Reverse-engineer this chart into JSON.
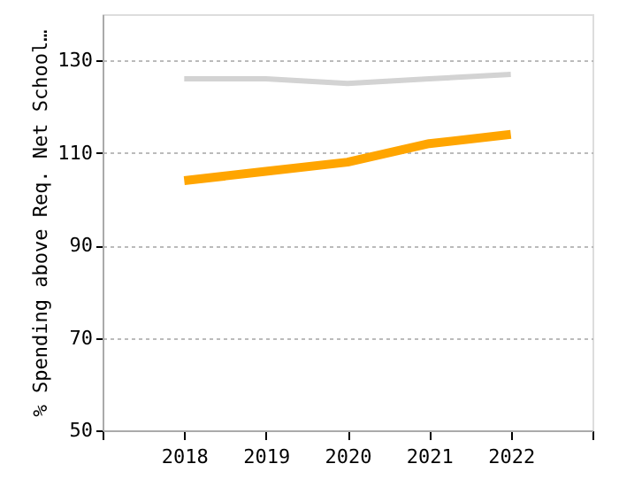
{
  "chart_data": {
    "type": "line",
    "ylabel": "% Spending above Req. Net School…",
    "x": [
      2018,
      2019,
      2020,
      2021,
      2022
    ],
    "series": [
      {
        "color": "#d3d3d3",
        "values": [
          126,
          126,
          125,
          126,
          127
        ]
      },
      {
        "color": "#ffa500",
        "values": [
          104,
          106,
          108,
          112,
          114
        ]
      }
    ],
    "xlim": [
      2017,
      2023
    ],
    "xticks": [
      {
        "value": 2017,
        "label": null
      },
      2018,
      2019,
      2020,
      2021,
      2022,
      {
        "value": 2023,
        "label": null
      }
    ],
    "ylim": [
      50,
      140
    ],
    "yticks": [
      50,
      70,
      90,
      110,
      130
    ],
    "grid": "y",
    "marker": "none",
    "line_style": "solid"
  }
}
